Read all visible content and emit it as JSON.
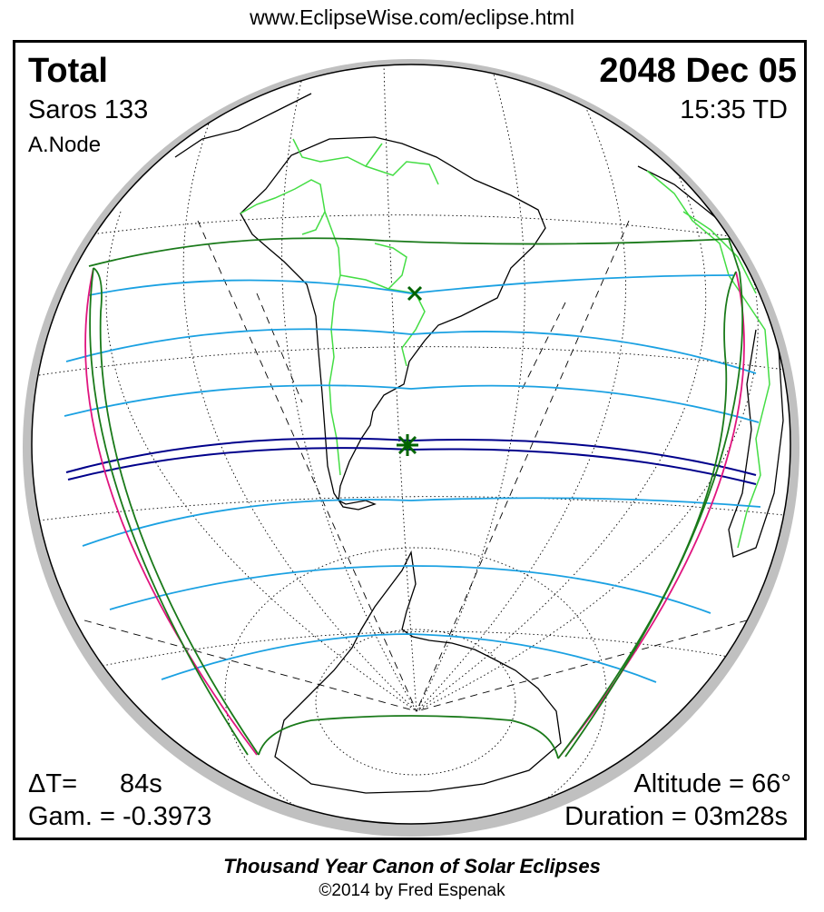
{
  "header": {
    "url": "www.EclipseWise.com/eclipse.html"
  },
  "eclipse": {
    "type": "Total",
    "date": "2048 Dec 05",
    "saros": "Saros 133",
    "time": "15:35 TD",
    "node": "A.Node",
    "delta_t_label": "ΔT=",
    "delta_t_value": "84s",
    "gamma": "Gam. = -0.3973",
    "altitude": "Altitude = 66°",
    "duration": "Duration = 03m28s"
  },
  "footer": {
    "title": "Thousand Year Canon of Solar Eclipses",
    "copyright": "©2014 by Fred Espenak"
  },
  "colors": {
    "penumbral_limit": "#1a7a1a",
    "rise_set_curve": "#e0157f",
    "central_path": "#00008b",
    "partial_lines": "#1ba1e2",
    "coastline": "#000000",
    "borders": "#44dd44",
    "night_shadow": "#c0c0c0",
    "graticule": "#000000"
  },
  "icons": {
    "greatest_eclipse": "green-asterisk-icon",
    "subsolar_point": "green-x-icon"
  }
}
